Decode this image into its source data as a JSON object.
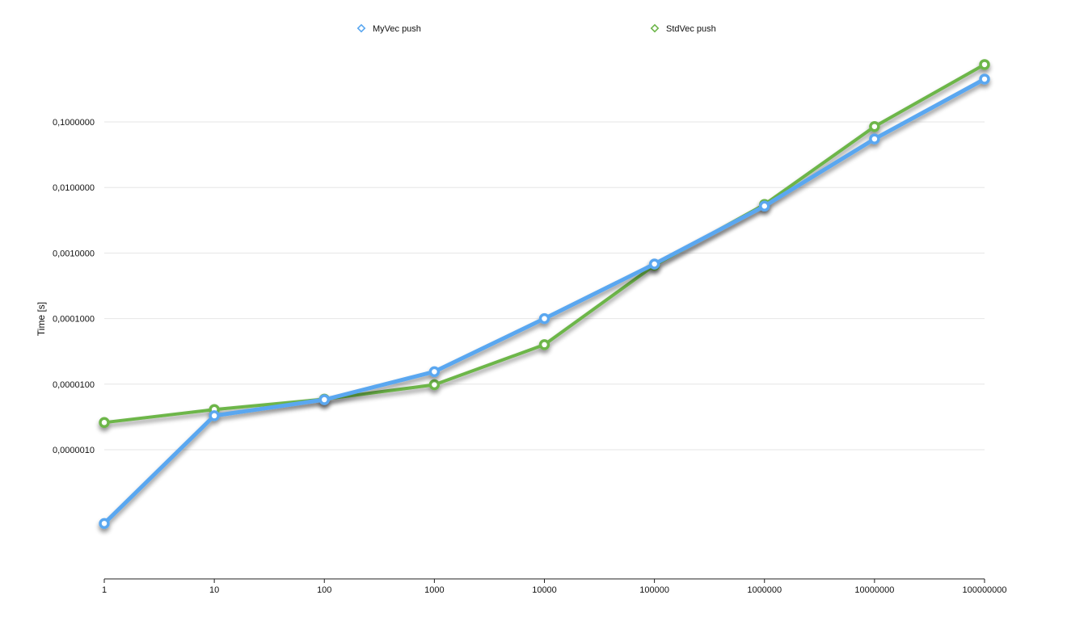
{
  "chart_data": {
    "type": "line",
    "title": "",
    "xlabel": "",
    "ylabel": "Time [s]",
    "x_scale": "log",
    "y_scale": "log",
    "x": [
      1,
      10,
      100,
      1000,
      10000,
      100000,
      1000000,
      10000000,
      100000000
    ],
    "x_tick_labels": [
      "1",
      "10",
      "100",
      "1000",
      "10000",
      "100000",
      "1000000",
      "10000000",
      "100000000"
    ],
    "y_ticks": [
      1e-06,
      1e-05,
      0.0001,
      0.001,
      0.01,
      0.1
    ],
    "y_tick_labels": [
      "0,0000010",
      "0,0000100",
      "0,0001000",
      "0,0010000",
      "0,0100000",
      "0,1000000"
    ],
    "ylim": [
      2e-08,
      0.5
    ],
    "grid": true,
    "legend_position": "top",
    "series": [
      {
        "name": "MyVec push",
        "color": "#5aa7f0",
        "values": [
          7.5e-08,
          3.3e-06,
          5.8e-06,
          1.55e-05,
          0.0001,
          0.00068,
          0.0052,
          0.055,
          0.45
        ]
      },
      {
        "name": "StdVec push",
        "color": "#6db64a",
        "values": [
          2.6e-06,
          4.1e-06,
          5.9e-06,
          9.8e-06,
          4e-05,
          0.00065,
          0.0055,
          0.085,
          0.75
        ]
      }
    ]
  }
}
